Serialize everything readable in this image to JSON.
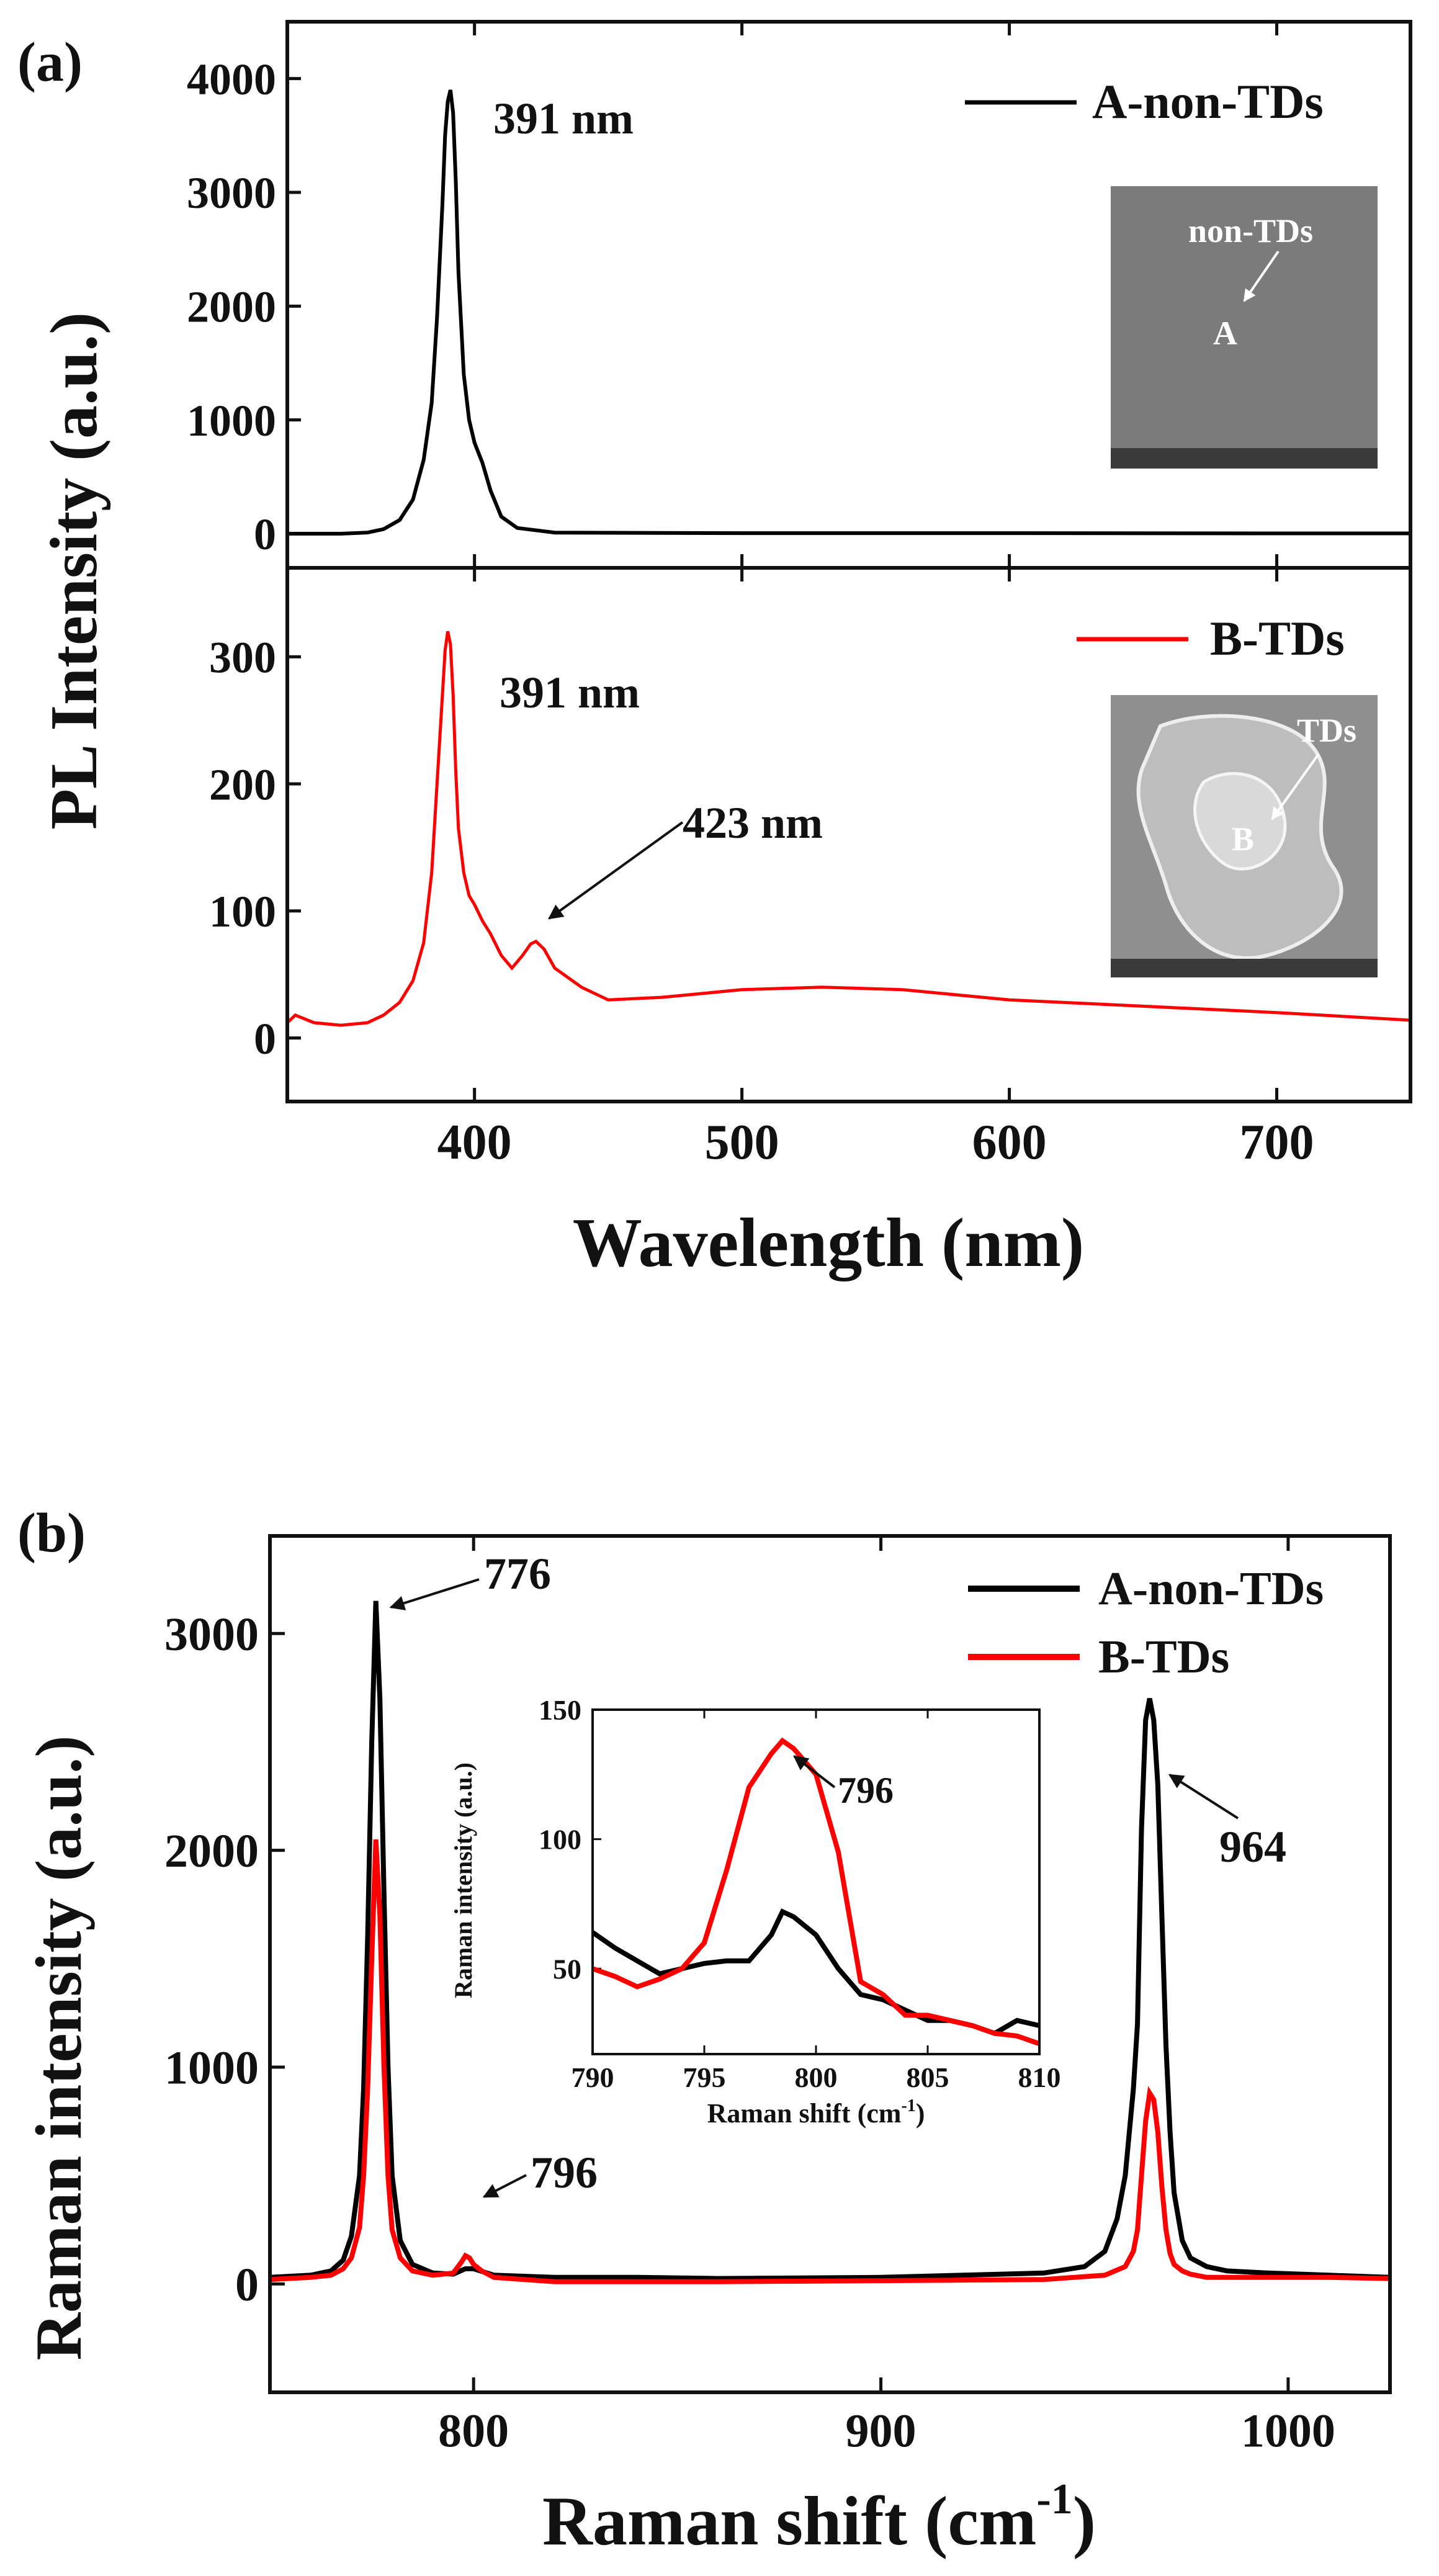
{
  "colors": {
    "series_a": "#000000",
    "series_b": "#ff0000",
    "axis": "#111111"
  },
  "chart_data": [
    {
      "id": "a",
      "panel_label": "(a)",
      "type": "line",
      "xlabel": "Wavelength (nm)",
      "ylabel": "PL Intensity (a.u.)",
      "xlim": [
        330,
        750
      ],
      "xticks": [
        400,
        500,
        600,
        700
      ],
      "subplots": [
        {
          "ylim": [
            -300,
            4500
          ],
          "yticks": [
            0,
            1000,
            2000,
            3000,
            4000
          ],
          "legend": "A-non-TDs",
          "color": "#000000",
          "peak_label": "391 nm",
          "inset_labels": {
            "arrow_text": "non-TDs",
            "point": "A"
          },
          "series": {
            "name": "A-non-TDs",
            "x": [
              330,
              350,
              360,
              366,
              372,
              377,
              381,
              384,
              386,
              388,
              389,
              390,
              391,
              392,
              393,
              394,
              396,
              398,
              400,
              403,
              406,
              410,
              416,
              430,
              500,
              600,
              700,
              750
            ],
            "values": [
              0,
              0,
              10,
              40,
              120,
              300,
              650,
              1150,
              1900,
              2900,
              3500,
              3800,
              3900,
              3700,
              3100,
              2300,
              1400,
              1000,
              800,
              620,
              380,
              150,
              50,
              10,
              5,
              5,
              3,
              3
            ]
          }
        },
        {
          "ylim": [
            -50,
            370
          ],
          "yticks": [
            0,
            100,
            200,
            300
          ],
          "legend": "B-TDs",
          "color": "#ff0000",
          "peak_label": "391 nm",
          "shoulder_label": "423 nm",
          "inset_labels": {
            "arrow_text": "TDs",
            "point": "B"
          },
          "series": {
            "name": "B-TDs",
            "x": [
              330,
              333,
              340,
              350,
              360,
              366,
              372,
              377,
              381,
              384,
              386,
              388,
              389,
              390,
              391,
              392,
              393,
              394,
              396,
              398,
              400,
              403,
              406,
              410,
              414,
              418,
              421,
              423,
              426,
              430,
              440,
              450,
              470,
              500,
              530,
              560,
              600,
              650,
              700,
              750
            ],
            "values": [
              12,
              18,
              12,
              10,
              12,
              18,
              28,
              45,
              75,
              130,
              200,
              270,
              305,
              320,
              310,
              270,
              210,
              165,
              130,
              112,
              105,
              92,
              82,
              65,
              55,
              65,
              74,
              76,
              70,
              55,
              40,
              30,
              32,
              38,
              40,
              38,
              30,
              25,
              20,
              14
            ]
          }
        }
      ]
    },
    {
      "id": "b",
      "panel_label": "(b)",
      "type": "line",
      "xlabel": "Raman shift (cm",
      "xlabel_sup": "-1",
      "xlabel_end": ")",
      "ylabel": "Raman intensity (a.u.)",
      "xlim": [
        750,
        1025
      ],
      "ylim": [
        -500,
        3450
      ],
      "xticks": [
        800,
        900,
        1000
      ],
      "yticks": [
        0,
        1000,
        2000,
        3000
      ],
      "legend": [
        "A-non-TDs",
        "B-TDs"
      ],
      "annotations": [
        "776",
        "796",
        "964"
      ],
      "series": [
        {
          "name": "A-non-TDs",
          "color": "#000000",
          "x": [
            750,
            760,
            765,
            768,
            770,
            772,
            773,
            774,
            775,
            776,
            777,
            778,
            779,
            780,
            782,
            785,
            790,
            795,
            798,
            800,
            805,
            820,
            840,
            860,
            900,
            940,
            950,
            955,
            958,
            960,
            962,
            963,
            964,
            965,
            966,
            967,
            968,
            969,
            970,
            971,
            972,
            974,
            976,
            980,
            985,
            995,
            1010,
            1025
          ],
          "values": [
            30,
            40,
            60,
            110,
            220,
            500,
            900,
            1600,
            2500,
            3150,
            2700,
            1800,
            1000,
            500,
            200,
            90,
            50,
            45,
            70,
            70,
            40,
            30,
            30,
            25,
            30,
            50,
            80,
            150,
            300,
            500,
            900,
            1200,
            2100,
            2600,
            2700,
            2600,
            2300,
            1700,
            1100,
            700,
            420,
            200,
            120,
            80,
            60,
            50,
            40,
            30
          ]
        },
        {
          "name": "B-TDs",
          "color": "#ff0000",
          "x": [
            750,
            760,
            765,
            768,
            770,
            772,
            773,
            774,
            775,
            776,
            777,
            778,
            779,
            780,
            782,
            785,
            790,
            795,
            797,
            798,
            799,
            800,
            802,
            805,
            820,
            860,
            900,
            940,
            955,
            960,
            962,
            963,
            964,
            965,
            966,
            967,
            968,
            969,
            970,
            971,
            972,
            974,
            976,
            980,
            990,
            1010,
            1025
          ],
          "values": [
            20,
            30,
            40,
            70,
            120,
            260,
            500,
            900,
            1500,
            2050,
            1700,
            1000,
            500,
            250,
            120,
            60,
            40,
            50,
            100,
            130,
            120,
            90,
            60,
            30,
            10,
            10,
            15,
            20,
            40,
            80,
            150,
            250,
            500,
            750,
            880,
            850,
            700,
            450,
            250,
            140,
            90,
            60,
            45,
            30,
            30,
            30,
            25
          ]
        }
      ],
      "inset": {
        "type": "line",
        "xlabel": "Raman shift (cm",
        "xlabel_sup": "-1",
        "xlabel_end": ")",
        "ylabel": "Raman intensity (a.u.)",
        "xlim": [
          790,
          810
        ],
        "ylim": [
          17,
          150
        ],
        "xticks": [
          790,
          795,
          800,
          805,
          810
        ],
        "yticks": [
          50,
          100,
          150
        ],
        "annotation": "796",
        "series": [
          {
            "name": "A-non-TDs",
            "color": "#000000",
            "x": [
              790,
              791,
              792,
              793,
              794,
              795,
              796,
              797,
              798,
              798.5,
              799,
              800,
              801,
              802,
              803,
              804,
              805,
              806,
              807,
              808,
              809,
              810
            ],
            "values": [
              64,
              58,
              53,
              48,
              50,
              52,
              53,
              53,
              63,
              72,
              70,
              63,
              50,
              40,
              38,
              34,
              30,
              30,
              28,
              25,
              30,
              28
            ]
          },
          {
            "name": "B-TDs",
            "color": "#ff0000",
            "x": [
              790,
              791,
              792,
              793,
              794,
              795,
              796,
              797,
              798,
              798.5,
              799,
              800,
              801,
              802,
              803,
              804,
              805,
              806,
              807,
              808,
              809,
              810
            ],
            "values": [
              50,
              47,
              43,
              46,
              50,
              60,
              88,
              120,
              133,
              138,
              135,
              125,
              95,
              45,
              40,
              32,
              32,
              30,
              28,
              25,
              24,
              21
            ]
          }
        ]
      }
    }
  ]
}
